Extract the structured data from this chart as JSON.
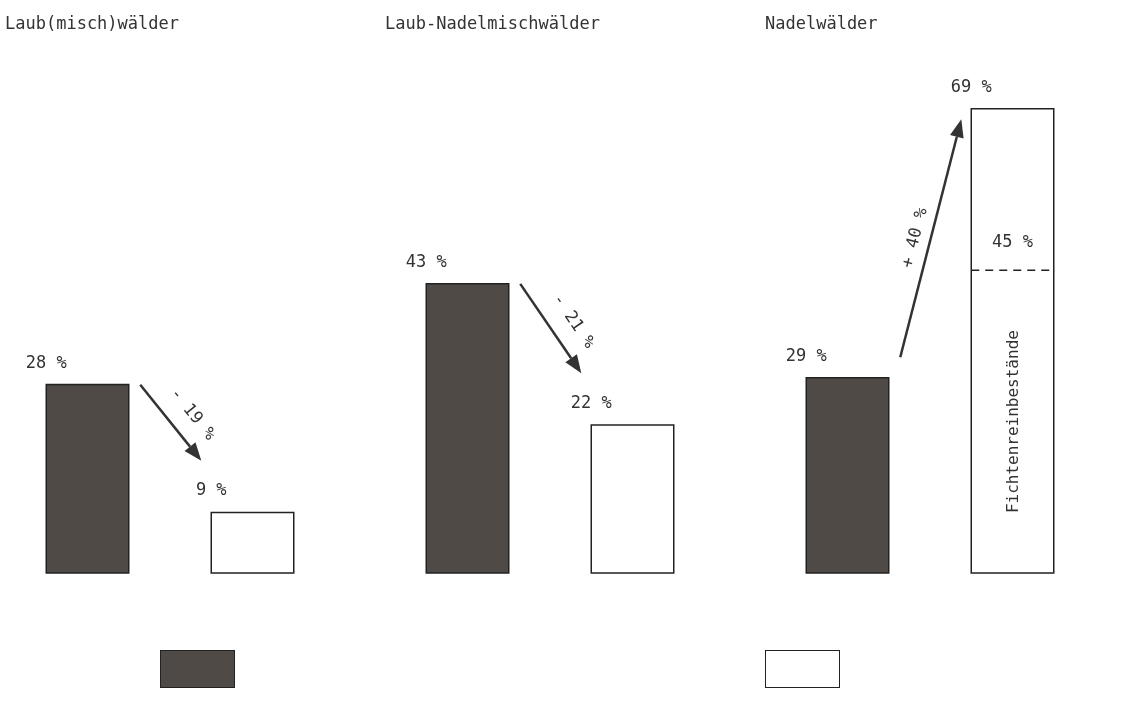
{
  "chart_data": [
    {
      "type": "bar",
      "title": "Laub(misch)wälder",
      "categories": [
        null,
        null
      ],
      "values": [
        28,
        9
      ],
      "colors": [
        "#4f4a45",
        "#ffffff"
      ],
      "value_labels": [
        "28 %",
        "9 %"
      ],
      "annotations": [
        "- 19 %"
      ]
    },
    {
      "type": "bar",
      "title": "Laub-Nadelmischwälder",
      "categories": [
        null,
        null
      ],
      "values": [
        43,
        22
      ],
      "colors": [
        "#4f4a45",
        "#ffffff"
      ],
      "value_labels": [
        "43 %",
        "22 %"
      ],
      "annotations": [
        "- 21 %"
      ]
    },
    {
      "type": "bar",
      "title": "Nadelwälder",
      "categories": [
        null,
        null
      ],
      "values": [
        29,
        69
      ],
      "colors": [
        "#4f4a45",
        "#ffffff"
      ],
      "value_labels": [
        "29 %",
        "69 %"
      ],
      "annotations": [
        "+ 40 %",
        "Fichtenreinbestände"
      ],
      "ref_lines": [
        {
          "axis": "y",
          "value": 45,
          "label": "45 %",
          "line_style": "dashed"
        }
      ]
    }
  ]
}
